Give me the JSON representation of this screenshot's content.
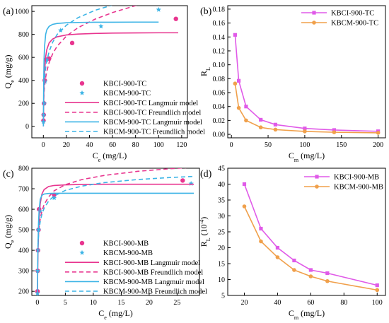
{
  "chart_data": [
    {
      "panel_label": "(a)",
      "type": "scatter",
      "xlabel": "C",
      "xlabel_sub": "e",
      "xlabel_unit": " (mg/L)",
      "ylabel": "Q",
      "ylabel_sub": "e",
      "ylabel_unit": " (mg/g)",
      "xlim": [
        -10,
        125
      ],
      "ylim": [
        -100,
        1050
      ],
      "xticks": [
        0,
        20,
        40,
        60,
        80,
        100,
        120
      ],
      "yticks": [
        0,
        200,
        400,
        600,
        800,
        1000
      ],
      "legend_position": "bottom-right",
      "series": [
        {
          "name": "KBCI-900-TC",
          "kind": "points",
          "marker": "ball",
          "color": "#e8358f",
          "x": [
            0.1,
            0.3,
            0.6,
            1.2,
            2.5,
            5,
            25,
            115
          ],
          "y": [
            50,
            100,
            200,
            400,
            580,
            590,
            725,
            935
          ]
        },
        {
          "name": "KBCM-900-TC",
          "kind": "points",
          "marker": "star",
          "color": "#3cb4e6",
          "x": [
            0.1,
            0.3,
            0.8,
            1.5,
            3,
            15,
            50,
            100
          ],
          "y": [
            40,
            100,
            200,
            390,
            580,
            835,
            870,
            1015
          ]
        },
        {
          "name": "KBCI-900-TC Langmuir model",
          "kind": "line",
          "dash": "solid",
          "color": "#e8358f",
          "x": [
            0,
            0.5,
            1,
            2,
            3,
            5,
            8,
            12,
            20,
            30,
            45,
            60,
            80,
            100,
            117
          ],
          "y": [
            0,
            322,
            467,
            604,
            668,
            725,
            759,
            779,
            795,
            803,
            808,
            811,
            813,
            814,
            814
          ]
        },
        {
          "name": "KBCI-900-TC Freundlich model",
          "kind": "line",
          "dash": "dash",
          "color": "#e8358f",
          "x": [
            0.3,
            0.6,
            1,
            2,
            3,
            5,
            8,
            12,
            20,
            30,
            45,
            60,
            80,
            100,
            117
          ],
          "y": [
            240,
            297,
            345,
            425,
            479,
            554,
            630,
            698,
            785,
            858,
            933,
            990,
            1050,
            1100,
            1137
          ]
        },
        {
          "name": "KBCM-900-TC Langmuir model",
          "kind": "line",
          "dash": "solid",
          "color": "#3cb4e6",
          "x": [
            0,
            0.3,
            0.6,
            1,
            2,
            3,
            5,
            8,
            12,
            20,
            30,
            45,
            60,
            80,
            100
          ],
          "y": [
            0,
            405,
            580,
            690,
            800,
            840,
            870,
            887,
            895,
            901,
            904,
            906,
            906,
            907,
            907
          ]
        },
        {
          "name": "KBCM-900-TC Freundlich model",
          "kind": "line",
          "dash": "dash",
          "color": "#3cb4e6",
          "x": [
            0.3,
            0.6,
            1,
            2,
            3,
            5,
            8,
            12,
            20,
            30,
            45,
            60,
            80,
            100
          ],
          "y": [
            300,
            365,
            420,
            510,
            570,
            650,
            730,
            800,
            880,
            945,
            1010,
            1055,
            1105,
            1145
          ]
        }
      ]
    },
    {
      "panel_label": "(b)",
      "type": "line",
      "xlabel": "C",
      "xlabel_sub": "m",
      "xlabel_unit": " (mg/L)",
      "ylabel": "R",
      "ylabel_sub": "L",
      "ylabel_unit": "",
      "xlim": [
        -5,
        210
      ],
      "ylim": [
        -0.005,
        0.185
      ],
      "xticks": [
        0,
        50,
        100,
        150,
        200
      ],
      "yticks": [
        0.0,
        0.02,
        0.04,
        0.06,
        0.08,
        0.1,
        0.12,
        0.14,
        0.16,
        0.18
      ],
      "ytick_labels": [
        "0.00",
        "0.02",
        "0.04",
        "0.06",
        "0.08",
        "0.10",
        "0.12",
        "0.14",
        "0.16",
        "0.18"
      ],
      "legend_position": "top-right",
      "series": [
        {
          "name": "KBCI-900-TC",
          "kind": "line-markers",
          "marker": "square",
          "color": "#e05ae8",
          "x": [
            5,
            10,
            20,
            40,
            60,
            100,
            140,
            200
          ],
          "y": [
            0.143,
            0.077,
            0.04,
            0.021,
            0.014,
            0.0085,
            0.0062,
            0.0044
          ]
        },
        {
          "name": "KBCM-900-TC",
          "kind": "line-markers",
          "marker": "circle",
          "color": "#f0a04b",
          "x": [
            5,
            10,
            20,
            40,
            60,
            100,
            140,
            200
          ],
          "y": [
            0.073,
            0.038,
            0.02,
            0.01,
            0.0068,
            0.0042,
            0.003,
            0.0022
          ]
        }
      ]
    },
    {
      "panel_label": "(c)",
      "type": "scatter",
      "xlabel": "C",
      "xlabel_sub": "e",
      "xlabel_unit": " (mg/L)",
      "ylabel": "Q",
      "ylabel_sub": "e",
      "ylabel_unit": " (mg/g)",
      "xlim": [
        -1,
        29
      ],
      "ylim": [
        180,
        800
      ],
      "xticks": [
        0,
        5,
        10,
        15,
        20,
        25
      ],
      "yticks": [
        200,
        300,
        400,
        500,
        600,
        700,
        800
      ],
      "legend_position": "bottom-right",
      "series": [
        {
          "name": "KBCI-900-MB",
          "kind": "points",
          "marker": "ball",
          "color": "#e8358f",
          "x": [
            0.02,
            0.05,
            0.1,
            0.2,
            0.3,
            3,
            26
          ],
          "y": [
            200,
            300,
            400,
            500,
            600,
            670,
            740
          ]
        },
        {
          "name": "KBCM-900-MB",
          "kind": "points",
          "marker": "star",
          "color": "#3cb4e6",
          "x": [
            0.02,
            0.05,
            0.1,
            0.2,
            0.5,
            3,
            27.5
          ],
          "y": [
            190,
            300,
            400,
            500,
            590,
            655,
            725
          ]
        },
        {
          "name": "KBCI-900-MB Langmuir model",
          "kind": "line",
          "dash": "solid",
          "color": "#e8358f",
          "x": [
            0,
            0.05,
            0.1,
            0.2,
            0.3,
            0.5,
            0.8,
            1.2,
            2,
            3,
            5,
            8,
            12,
            18,
            24,
            28
          ],
          "y": [
            180,
            297,
            378,
            483,
            549,
            626,
            674,
            696,
            711,
            716,
            719,
            721,
            722,
            722,
            722,
            722
          ]
        },
        {
          "name": "KBCI-900-MB Freundlich model",
          "kind": "line",
          "dash": "dash",
          "color": "#e8358f",
          "x": [
            0.1,
            0.2,
            0.3,
            0.5,
            0.8,
            1.2,
            2,
            3,
            5,
            8,
            12,
            18,
            24,
            28
          ],
          "y": [
            430,
            480,
            512,
            552,
            590,
            623,
            660,
            690,
            720,
            745,
            765,
            785,
            798,
            805
          ]
        },
        {
          "name": "KBCM-900-MB Langmuir model",
          "kind": "line",
          "dash": "solid",
          "color": "#3cb4e6",
          "x": [
            0,
            0.05,
            0.1,
            0.2,
            0.3,
            0.5,
            0.8,
            1.2,
            2,
            3,
            5,
            8,
            12,
            18,
            24,
            28
          ],
          "y": [
            180,
            323,
            422,
            534,
            595,
            648,
            668,
            674,
            677,
            678,
            678,
            678,
            678,
            678,
            678,
            678
          ]
        },
        {
          "name": "KBCM-900-MB Freundlich model",
          "kind": "line",
          "dash": "dash",
          "color": "#3cb4e6",
          "x": [
            0.1,
            0.2,
            0.3,
            0.5,
            0.8,
            1.2,
            2,
            3,
            5,
            8,
            12,
            18,
            24,
            28
          ],
          "y": [
            420,
            470,
            500,
            540,
            575,
            605,
            640,
            665,
            692,
            713,
            730,
            745,
            755,
            760
          ]
        }
      ]
    },
    {
      "panel_label": "(d)",
      "type": "line",
      "xlabel": "C",
      "xlabel_sub": "m",
      "xlabel_unit": " (mg/L)",
      "ylabel": "R",
      "ylabel_sub": "L",
      "ylabel_unit": " (10",
      "ylabel_sup": "-4",
      "ylabel_tail": ")",
      "xlim": [
        10,
        105
      ],
      "ylim": [
        5,
        45
      ],
      "xticks": [
        20,
        40,
        60,
        80,
        100
      ],
      "yticks": [
        5,
        10,
        15,
        20,
        25,
        30,
        35,
        40,
        45
      ],
      "legend_position": "top-right",
      "series": [
        {
          "name": "KBCI-900-MB",
          "kind": "line-markers",
          "marker": "square",
          "color": "#e05ae8",
          "x": [
            20,
            30,
            40,
            50,
            60,
            70,
            100
          ],
          "y": [
            40,
            26,
            20,
            16,
            13,
            12,
            8.2
          ]
        },
        {
          "name": "KBCM-900-MB",
          "kind": "line-markers",
          "marker": "circle",
          "color": "#f0a04b",
          "x": [
            20,
            30,
            40,
            50,
            60,
            70,
            100
          ],
          "y": [
            33,
            22,
            17,
            13,
            11,
            9.5,
            6.7
          ]
        }
      ]
    }
  ]
}
